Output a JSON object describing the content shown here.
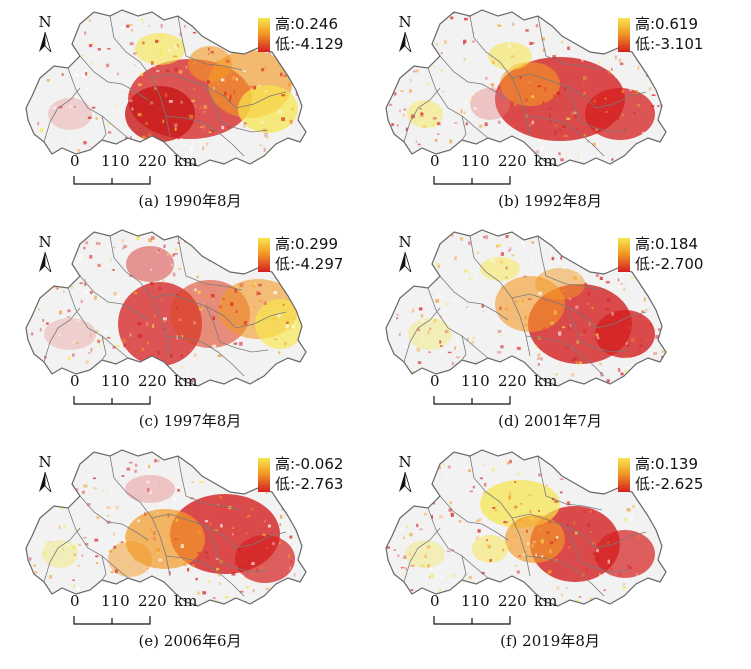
{
  "panels": [
    {
      "caption": "(a) 1990年8月",
      "high": "高:0.246",
      "low": "低:-4.129",
      "north": "N",
      "scale": {
        "l0": "0",
        "l1": "110",
        "l2": "220",
        "unit": "km"
      }
    },
    {
      "caption": "(b) 1992年8月",
      "high": "高:0.619",
      "low": "低:-3.101",
      "north": "N",
      "scale": {
        "l0": "0",
        "l1": "110",
        "l2": "220",
        "unit": "km"
      }
    },
    {
      "caption": "(c) 1997年8月",
      "high": "高:0.299",
      "low": "低:-4.297",
      "north": "N",
      "scale": {
        "l0": "0",
        "l1": "110",
        "l2": "220",
        "unit": "km"
      }
    },
    {
      "caption": "(d) 2001年7月",
      "high": "高:0.184",
      "low": "低:-2.700",
      "north": "N",
      "scale": {
        "l0": "0",
        "l1": "110",
        "l2": "220",
        "unit": "km"
      }
    },
    {
      "caption": "(e) 2006年6月",
      "high": "高:-0.062",
      "low": "低:-2.763",
      "north": "N",
      "scale": {
        "l0": "0",
        "l1": "110",
        "l2": "220",
        "unit": "km"
      }
    },
    {
      "caption": "(f) 2019年8月",
      "high": "高:0.139",
      "low": "低:-2.625",
      "north": "N",
      "scale": {
        "l0": "0",
        "l1": "110",
        "l2": "220",
        "unit": "km"
      }
    }
  ],
  "colors": {
    "high": "#f7e64a",
    "mid": "#f39a26",
    "low": "#d51f1f",
    "border": "#7a7a7a",
    "land": "#f2f2f2"
  }
}
